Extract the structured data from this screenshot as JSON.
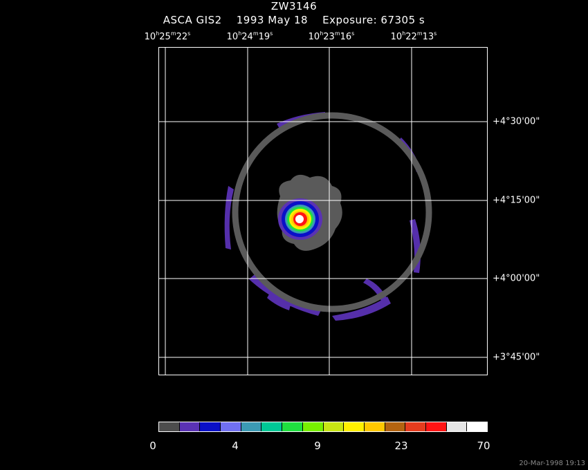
{
  "title": "ZW3146",
  "subtitle": {
    "instrument": "ASCA GIS2",
    "date": "1993 May 18",
    "exposure": "Exposure: 67305 s"
  },
  "ra_labels": [
    {
      "h": "10",
      "m": "25",
      "s": "22"
    },
    {
      "h": "10",
      "m": "24",
      "s": "19"
    },
    {
      "h": "10",
      "m": "23",
      "s": "16"
    },
    {
      "h": "10",
      "m": "22",
      "s": "13"
    }
  ],
  "dec_labels": [
    "+4°30'00\"",
    "+4°15'00\"",
    "+4°00'00\"",
    "+3°45'00\""
  ],
  "colorbar": {
    "colors": [
      "#4d4d4d",
      "#5a32b4",
      "#0a10c8",
      "#7070f0",
      "#3c9ab4",
      "#00c896",
      "#20e040",
      "#78f000",
      "#c8e614",
      "#fff000",
      "#ffc800",
      "#b46410",
      "#e63c1e",
      "#ff1414",
      "#e6e6e6",
      "#ffffff"
    ],
    "labels": [
      "0",
      "4",
      "9",
      "23",
      "70"
    ]
  },
  "timestamp": "20-Mar-1998 19:13"
}
